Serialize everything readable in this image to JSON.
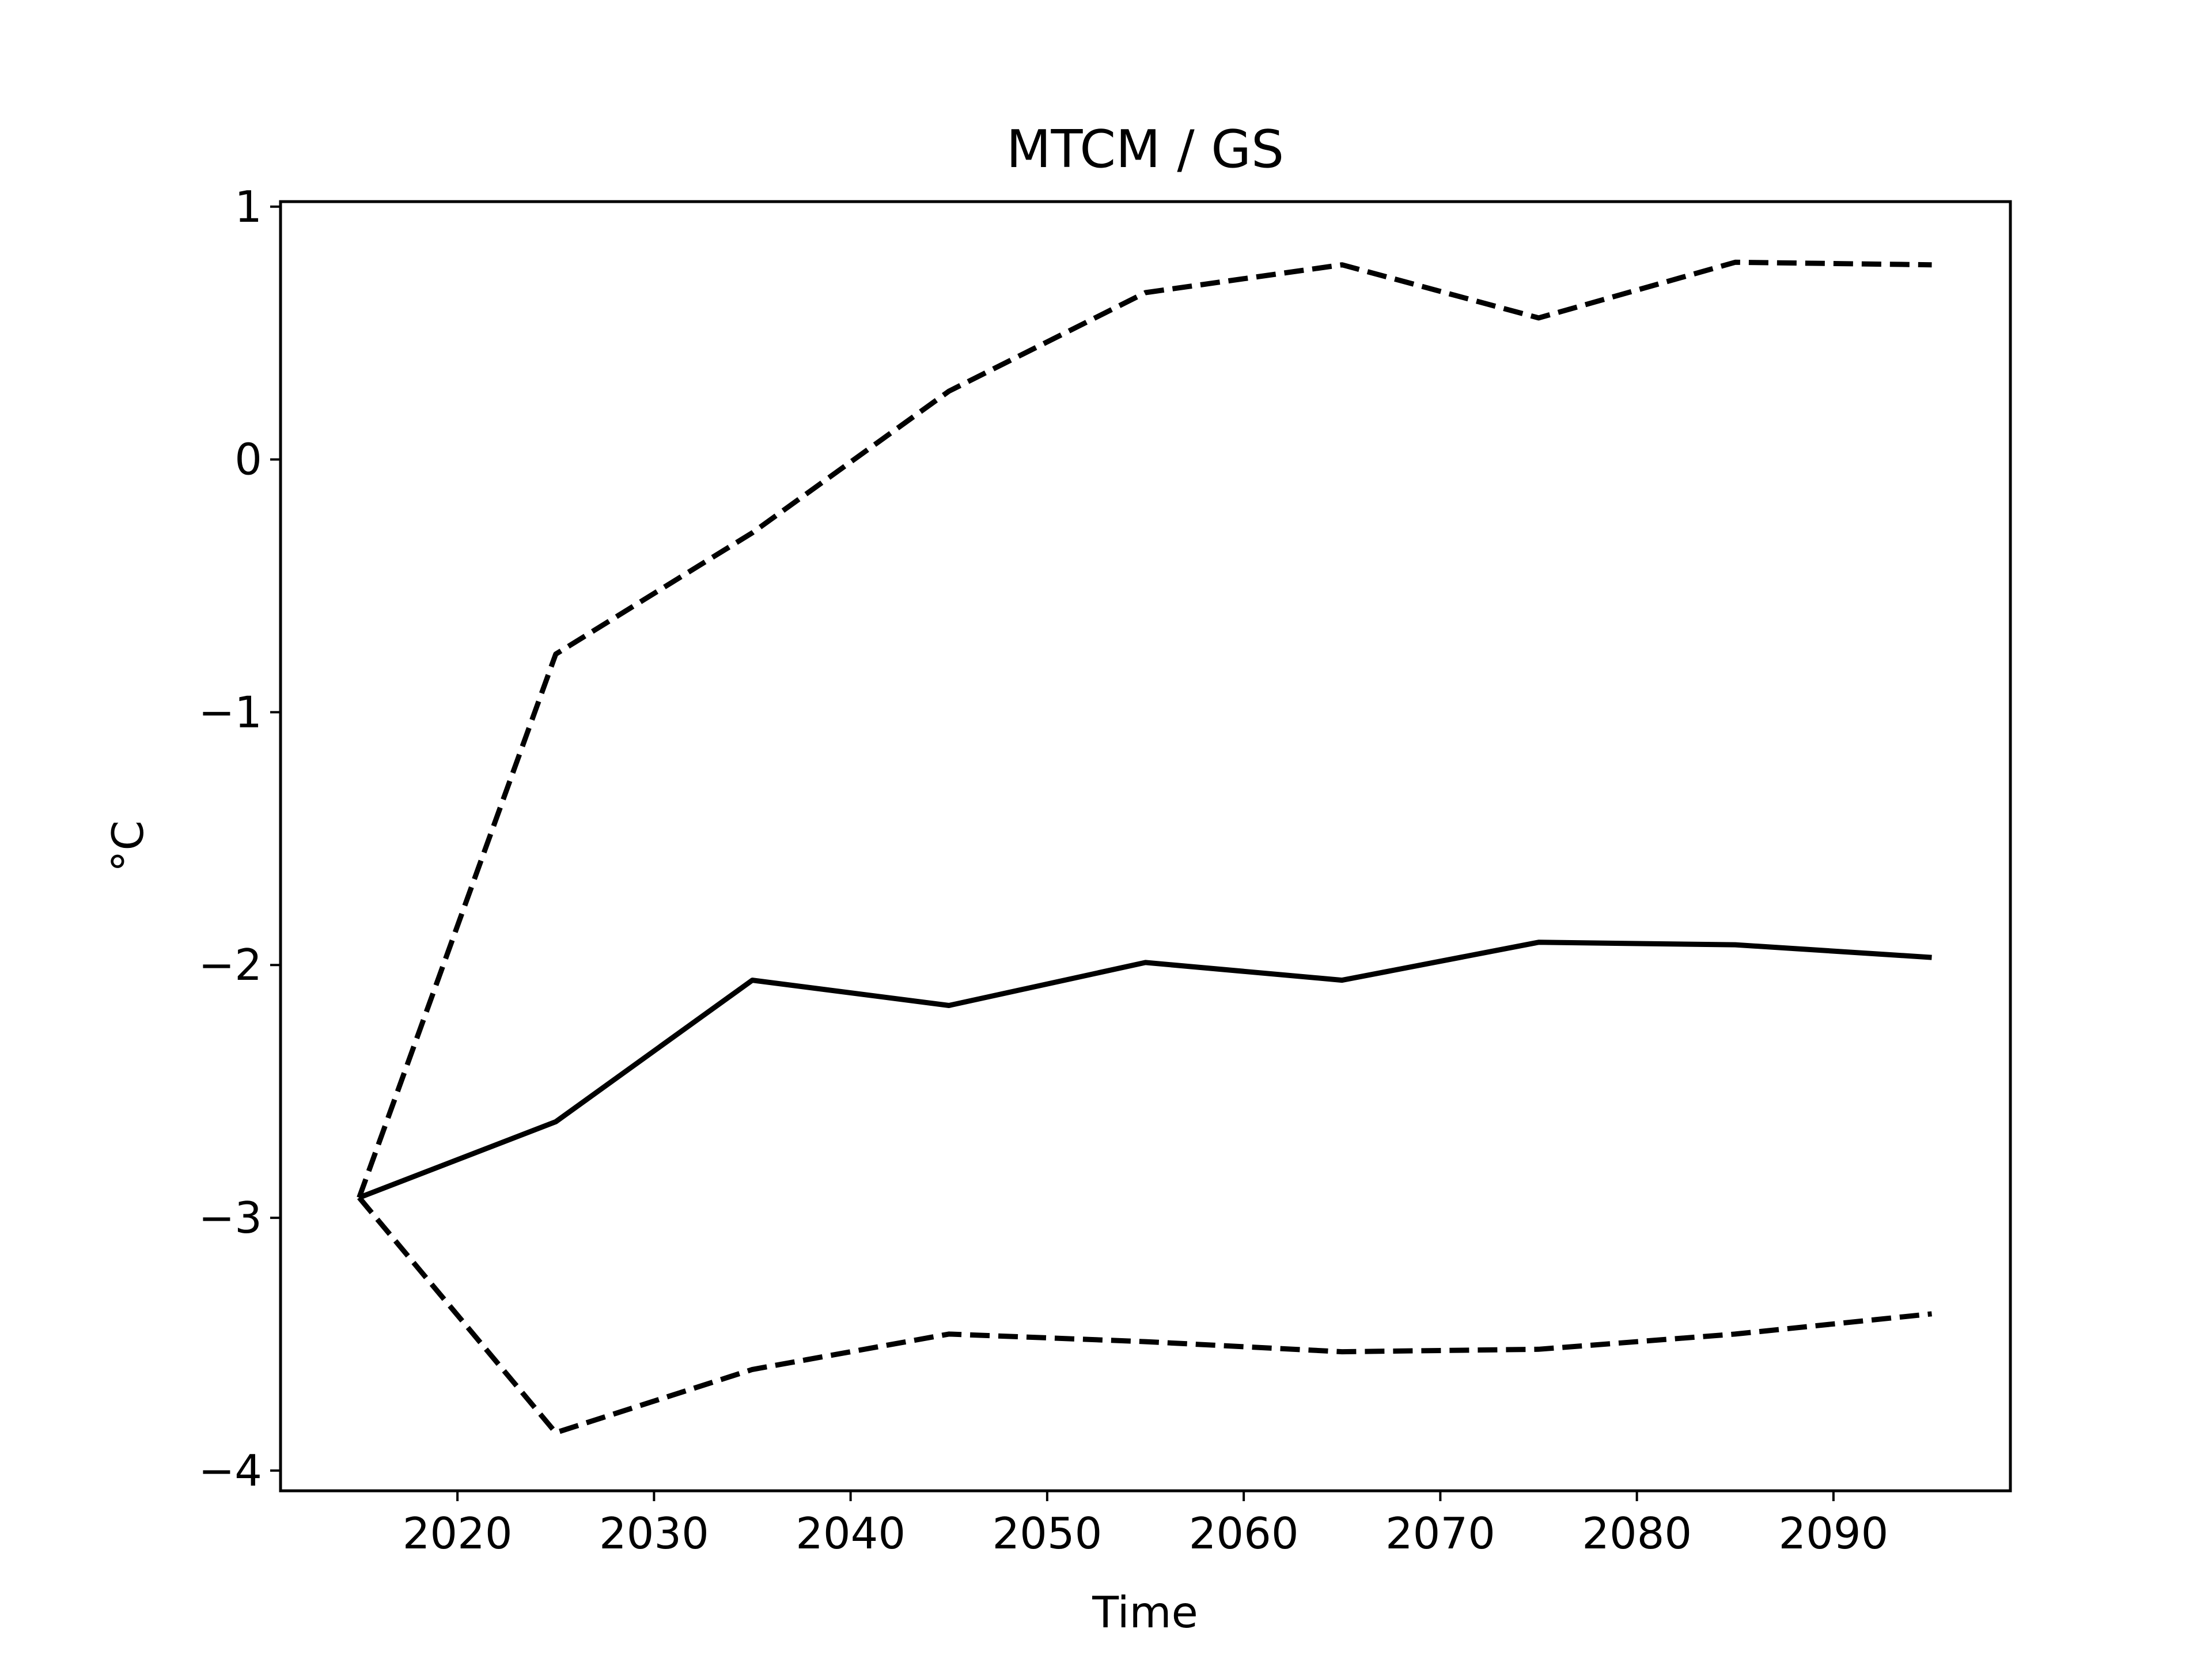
{
  "chart_data": {
    "type": "line",
    "title": "MTCM / GS",
    "xlabel": "Time",
    "ylabel": "°C",
    "xlim": [
      2011,
      2099
    ],
    "ylim": [
      -4.08,
      1.02
    ],
    "x_ticks": [
      2020,
      2030,
      2040,
      2050,
      2060,
      2070,
      2080,
      2090
    ],
    "y_ticks": [
      1,
      0,
      -1,
      -2,
      -3,
      -4
    ],
    "y_tick_labels": [
      "1",
      "0",
      "−1",
      "−2",
      "−3",
      "−4"
    ],
    "grid": false,
    "x": [
      2015,
      2025,
      2035,
      2045,
      2055,
      2065,
      2075,
      2085,
      2095
    ],
    "series": [
      {
        "style": "solid",
        "color": "#000000",
        "values": [
          -2.92,
          -2.62,
          -2.06,
          -2.16,
          -1.99,
          -2.06,
          -1.91,
          -1.92,
          -1.97
        ]
      },
      {
        "style": "dashed",
        "color": "#000000",
        "values": [
          -2.92,
          -0.77,
          -0.29,
          0.27,
          0.66,
          0.77,
          0.56,
          0.78,
          0.77
        ]
      },
      {
        "style": "dashed",
        "color": "#000000",
        "values": [
          -2.92,
          -3.85,
          -3.6,
          -3.46,
          -3.49,
          -3.53,
          -3.52,
          -3.46,
          -3.38
        ]
      }
    ]
  }
}
